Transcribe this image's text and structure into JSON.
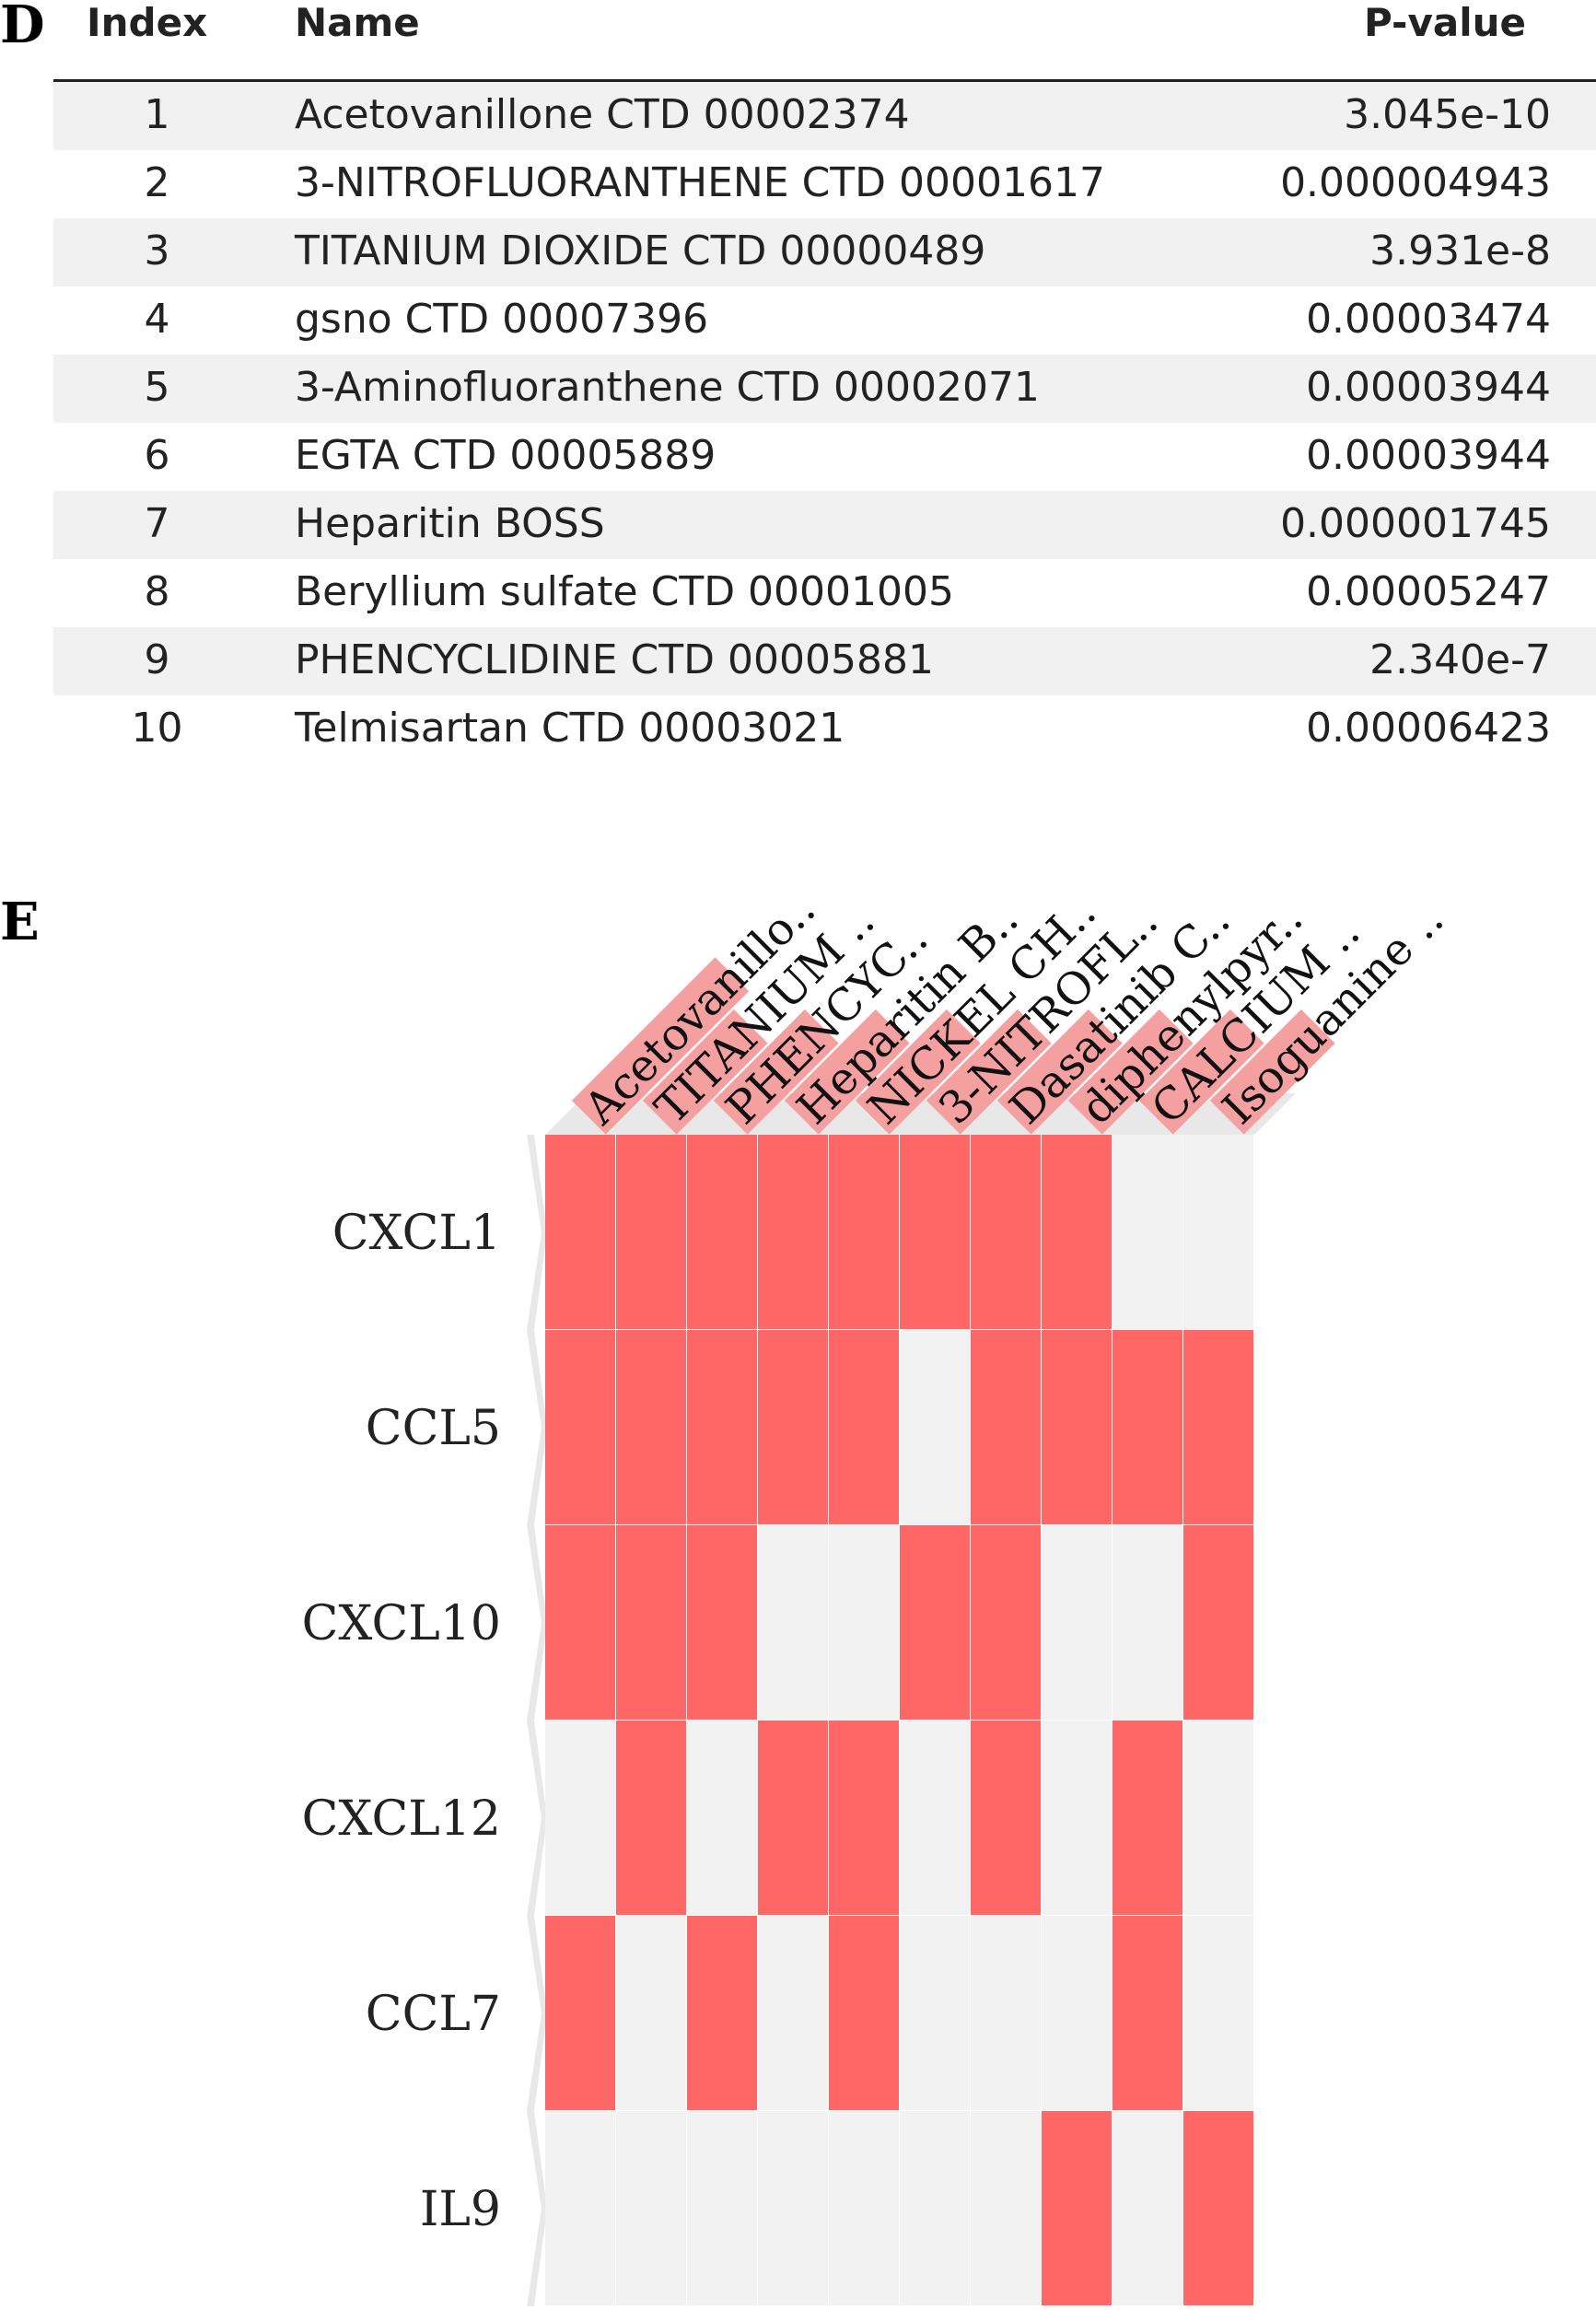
{
  "panels": {
    "d": "D",
    "e": "E"
  },
  "table": {
    "headers": {
      "index": "Index",
      "name": "Name",
      "pvalue": "P-value"
    },
    "rows": [
      {
        "index": "1",
        "name": "Acetovanillone CTD 00002374",
        "pvalue": "3.045e-10"
      },
      {
        "index": "2",
        "name": "3-NITROFLUORANTHENE CTD 00001617",
        "pvalue": "0.000004943"
      },
      {
        "index": "3",
        "name": "TITANIUM DIOXIDE CTD 00000489",
        "pvalue": "3.931e-8"
      },
      {
        "index": "4",
        "name": "gsno CTD 00007396",
        "pvalue": "0.00003474"
      },
      {
        "index": "5",
        "name": "3-Aminofluoranthene CTD 00002071",
        "pvalue": "0.00003944"
      },
      {
        "index": "6",
        "name": "EGTA CTD 00005889",
        "pvalue": "0.00003944"
      },
      {
        "index": "7",
        "name": "Heparitin BOSS",
        "pvalue": "0.000001745"
      },
      {
        "index": "8",
        "name": "Beryllium sulfate CTD 00001005",
        "pvalue": "0.00005247"
      },
      {
        "index": "9",
        "name": "PHENCYCLIDINE CTD 00005881",
        "pvalue": "2.340e-7"
      },
      {
        "index": "10",
        "name": "Telmisartan CTD 00003021",
        "pvalue": "0.00006423"
      }
    ]
  },
  "chart_data": {
    "type": "heatmap",
    "title": "",
    "x": [
      "Acetovanillo..",
      "TITANIUM ..",
      "PHENCYC..",
      "Heparitin B..",
      "NICKEL CH..",
      "3-NITROFL..",
      "Dasatinib C..",
      "diphenylpyr..",
      "CALCIUM ..",
      "Isoguanine .."
    ],
    "y": [
      "CXCL1",
      "CCL5",
      "CXCL10",
      "CXCL12",
      "CCL7",
      "IL9"
    ],
    "values": [
      [
        1,
        1,
        1,
        1,
        1,
        1,
        1,
        1,
        0,
        0
      ],
      [
        1,
        1,
        1,
        1,
        1,
        0,
        1,
        1,
        1,
        1
      ],
      [
        1,
        1,
        1,
        0,
        0,
        1,
        1,
        0,
        0,
        1
      ],
      [
        0,
        1,
        0,
        1,
        1,
        0,
        1,
        0,
        1,
        0
      ],
      [
        1,
        0,
        1,
        0,
        1,
        0,
        0,
        0,
        1,
        0
      ],
      [
        0,
        0,
        0,
        0,
        0,
        0,
        0,
        1,
        0,
        1
      ]
    ],
    "colors": {
      "on": "#ff6666",
      "off": "#f2f2f2",
      "label_highlight": "#f5a0a0",
      "header_shade": "#e8e8e8"
    }
  }
}
